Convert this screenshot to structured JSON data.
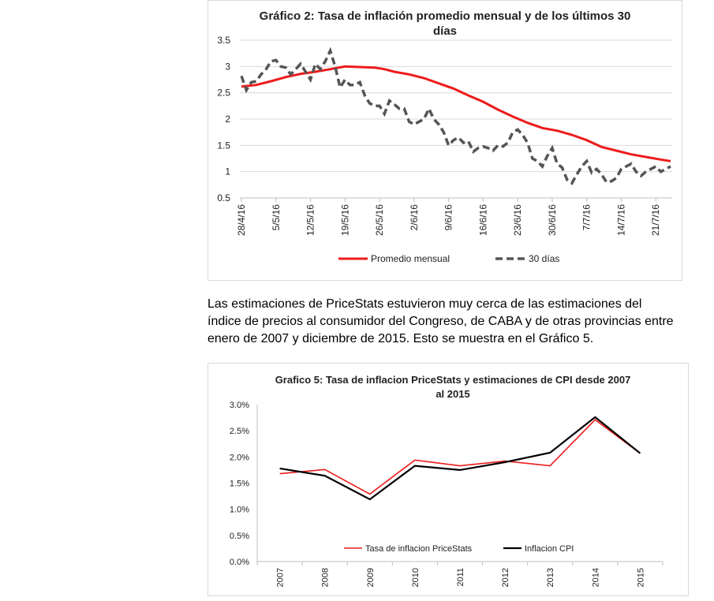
{
  "charts": [
    {
      "title_lines": [
        "Gráfico 2: Tasa de inflación promedio mensual y de los últimos 30",
        "días"
      ],
      "y_ticks": [
        "3.5",
        "3",
        "2.5",
        "2",
        "1.5",
        "1",
        "0.5"
      ],
      "x_ticks": [
        "28/4/16",
        "5/5/16",
        "12/5/16",
        "19/5/16",
        "26/5/16",
        "2/6/16",
        "9/6/16",
        "16/6/16",
        "23/6/16",
        "30/6/16",
        "7/7/16",
        "14/7/16",
        "21/7/16"
      ],
      "legend": [
        {
          "label": "Promedio mensual",
          "color": "#ee1b1b",
          "style": "solid"
        },
        {
          "label": "30 días",
          "color": "#555555",
          "style": "dashed"
        }
      ]
    },
    {
      "title_lines": [
        "Grafico 5: Tasa de inflacion PriceStats y estimaciones de CPI desde 2007",
        "al 2015"
      ],
      "y_ticks": [
        "3.0%",
        "2.5%",
        "2.0%",
        "1.5%",
        "1.0%",
        "0.5%",
        "0.0%"
      ],
      "x_ticks": [
        "2007",
        "2008",
        "2009",
        "2010",
        "2011",
        "2012",
        "2013",
        "2014",
        "2015"
      ],
      "legend": [
        {
          "label": "Tasa de inflacion PriceStats",
          "color": "#ee1b1b",
          "style": "solid"
        },
        {
          "label": "Inflacion CPI",
          "color": "#000000",
          "style": "solid"
        }
      ]
    }
  ],
  "paragraph": {
    "lines": [
      "Las estimaciones de PriceStats estuvieron muy cerca de las estimaciones del",
      "índice de precios al consumidor del Congreso, de CABA y de otras provincias entre",
      "enero de 2007 y diciembre de 2015. Esto se muestra en el Gráfico 5."
    ]
  },
  "chart_data": [
    {
      "type": "line",
      "title": "Gráfico 2: Tasa de inflación promedio mensual y de los últimos 30 días",
      "xlabel": "",
      "ylabel": "",
      "ylim": [
        0.5,
        3.5
      ],
      "x_index_range": [
        0,
        87
      ],
      "x_tick_indices": [
        0,
        7,
        14,
        21,
        28,
        35,
        42,
        49,
        56,
        63,
        70,
        77,
        84
      ],
      "series": [
        {
          "name": "Promedio mensual",
          "x": [
            0,
            3,
            6,
            9,
            12,
            15,
            18,
            21,
            24,
            27,
            29,
            31,
            34,
            37,
            40,
            43,
            46,
            49,
            52,
            55,
            58,
            61,
            64,
            67,
            70,
            73,
            76,
            79,
            82,
            85,
            87
          ],
          "values": [
            2.62,
            2.65,
            2.72,
            2.8,
            2.86,
            2.9,
            2.95,
            3.0,
            2.99,
            2.98,
            2.95,
            2.9,
            2.85,
            2.78,
            2.68,
            2.58,
            2.45,
            2.33,
            2.18,
            2.05,
            1.93,
            1.83,
            1.78,
            1.7,
            1.6,
            1.47,
            1.4,
            1.33,
            1.28,
            1.23,
            1.2
          ]
        },
        {
          "name": "30 días",
          "x": [
            0,
            1,
            2,
            3,
            4,
            5,
            6,
            7,
            8,
            9,
            10,
            11,
            12,
            13,
            14,
            15,
            16,
            17,
            18,
            19,
            20,
            21,
            22,
            23,
            24,
            25,
            26,
            27,
            28,
            29,
            30,
            31,
            32,
            33,
            34,
            35,
            36,
            37,
            38,
            39,
            40,
            41,
            42,
            43,
            44,
            45,
            46,
            47,
            48,
            49,
            50,
            51,
            52,
            53,
            54,
            55,
            56,
            57,
            58,
            59,
            60,
            61,
            62,
            63,
            64,
            65,
            66,
            67,
            68,
            69,
            70,
            71,
            72,
            73,
            74,
            75,
            76,
            77,
            78,
            79,
            80,
            81,
            82,
            83,
            84,
            85,
            86,
            87
          ],
          "values": [
            2.82,
            2.55,
            2.7,
            2.72,
            2.85,
            2.95,
            3.1,
            3.12,
            3.0,
            2.98,
            2.85,
            2.95,
            3.05,
            2.9,
            2.75,
            3.05,
            2.95,
            3.1,
            3.3,
            3.0,
            2.6,
            2.75,
            2.65,
            2.65,
            2.7,
            2.45,
            2.3,
            2.25,
            2.25,
            2.1,
            2.35,
            2.28,
            2.2,
            2.2,
            1.95,
            1.9,
            1.95,
            2.0,
            2.2,
            2.0,
            1.9,
            1.75,
            1.5,
            1.6,
            1.65,
            1.55,
            1.58,
            1.38,
            1.45,
            1.48,
            1.45,
            1.4,
            1.5,
            1.48,
            1.55,
            1.75,
            1.8,
            1.7,
            1.55,
            1.25,
            1.2,
            1.1,
            1.3,
            1.45,
            1.15,
            1.08,
            0.85,
            0.78,
            0.95,
            1.1,
            1.2,
            0.98,
            1.05,
            0.95,
            0.8,
            0.82,
            0.88,
            1.05,
            1.1,
            1.15,
            1.0,
            0.92,
            1.0,
            1.05,
            1.1,
            1.0,
            1.05,
            1.1
          ]
        }
      ]
    },
    {
      "type": "line",
      "title": "Grafico 5: Tasa de inflacion PriceStats y estimaciones de CPI desde 2007 al 2015",
      "xlabel": "",
      "ylabel": "",
      "ylim": [
        0,
        3.0
      ],
      "categories": [
        "2007",
        "2008",
        "2009",
        "2010",
        "2011",
        "2012",
        "2013",
        "2014",
        "2015"
      ],
      "series": [
        {
          "name": "Tasa de inflacion PriceStats",
          "values": [
            1.68,
            1.76,
            1.29,
            1.94,
            1.83,
            1.92,
            1.83,
            2.71,
            2.07
          ]
        },
        {
          "name": "Inflacion CPI",
          "values": [
            1.78,
            1.64,
            1.19,
            1.83,
            1.75,
            1.9,
            2.08,
            2.76,
            2.07
          ]
        }
      ]
    }
  ]
}
